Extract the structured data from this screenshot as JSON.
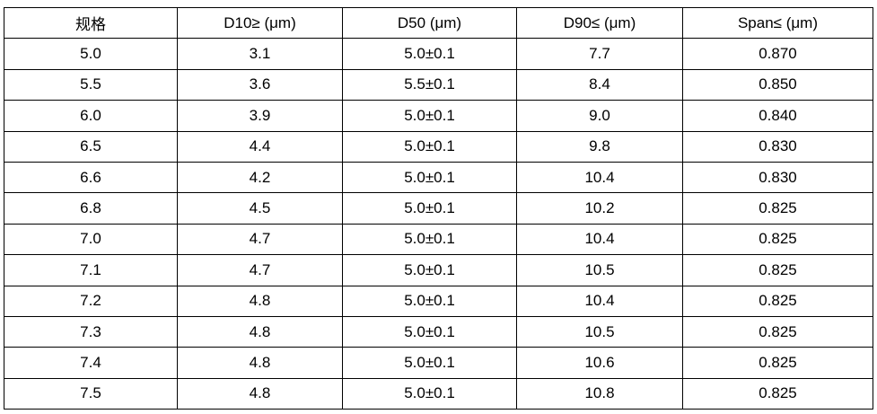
{
  "table": {
    "header": [
      "规格",
      "D10≥ (μm)",
      "D50 (μm)",
      "D90≤ (μm)",
      "Span≤ (μm)"
    ],
    "rows": [
      [
        "5.0",
        "3.1",
        "5.0±0.1",
        "7.7",
        "0.870"
      ],
      [
        "5.5",
        "3.6",
        "5.5±0.1",
        "8.4",
        "0.850"
      ],
      [
        "6.0",
        "3.9",
        "5.0±0.1",
        "9.0",
        "0.840"
      ],
      [
        "6.5",
        "4.4",
        "5.0±0.1",
        "9.8",
        "0.830"
      ],
      [
        "6.6",
        "4.2",
        "5.0±0.1",
        "10.4",
        "0.830"
      ],
      [
        "6.8",
        "4.5",
        "5.0±0.1",
        "10.2",
        "0.825"
      ],
      [
        "7.0",
        "4.7",
        "5.0±0.1",
        "10.4",
        "0.825"
      ],
      [
        "7.1",
        "4.7",
        "5.0±0.1",
        "10.5",
        "0.825"
      ],
      [
        "7.2",
        "4.8",
        "5.0±0.1",
        "10.4",
        "0.825"
      ],
      [
        "7.3",
        "4.8",
        "5.0±0.1",
        "10.5",
        "0.825"
      ],
      [
        "7.4",
        "4.8",
        "5.0±0.1",
        "10.6",
        "0.825"
      ],
      [
        "7.5",
        "4.8",
        "5.0±0.1",
        "10.8",
        "0.825"
      ]
    ]
  }
}
